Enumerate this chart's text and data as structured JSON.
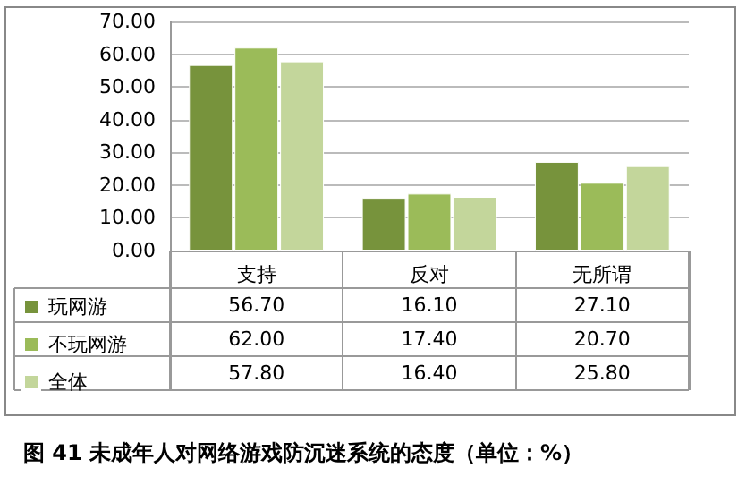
{
  "chart_data": {
    "type": "bar",
    "title": "图 41 未成年人对网络游戏防沉迷系统的态度（单位：%）",
    "categories": [
      "支持",
      "反对",
      "无所谓"
    ],
    "series": [
      {
        "name": "玩网游",
        "color": "#77933c",
        "values": [
          56.7,
          16.1,
          27.1
        ],
        "value_labels": [
          "56.70",
          "16.10",
          "27.10"
        ]
      },
      {
        "name": "不玩网游",
        "color": "#9bbb59",
        "values": [
          62.0,
          17.4,
          20.7
        ],
        "value_labels": [
          "62.00",
          "17.40",
          "20.70"
        ]
      },
      {
        "name": "全体",
        "color": "#c3d69b",
        "values": [
          57.8,
          16.4,
          25.8
        ],
        "value_labels": [
          "57.80",
          "16.40",
          "25.80"
        ]
      }
    ],
    "ylim": [
      0,
      70
    ],
    "yticks": [
      {
        "value": 0,
        "label": "0.00"
      },
      {
        "value": 10,
        "label": "10.00"
      },
      {
        "value": 20,
        "label": "20.00"
      },
      {
        "value": 30,
        "label": "30.00"
      },
      {
        "value": 40,
        "label": "40.00"
      },
      {
        "value": 50,
        "label": "50.00"
      },
      {
        "value": 60,
        "label": "60.00"
      },
      {
        "value": 70,
        "label": "70.00"
      }
    ],
    "grid": "y",
    "legend": "bottom"
  }
}
